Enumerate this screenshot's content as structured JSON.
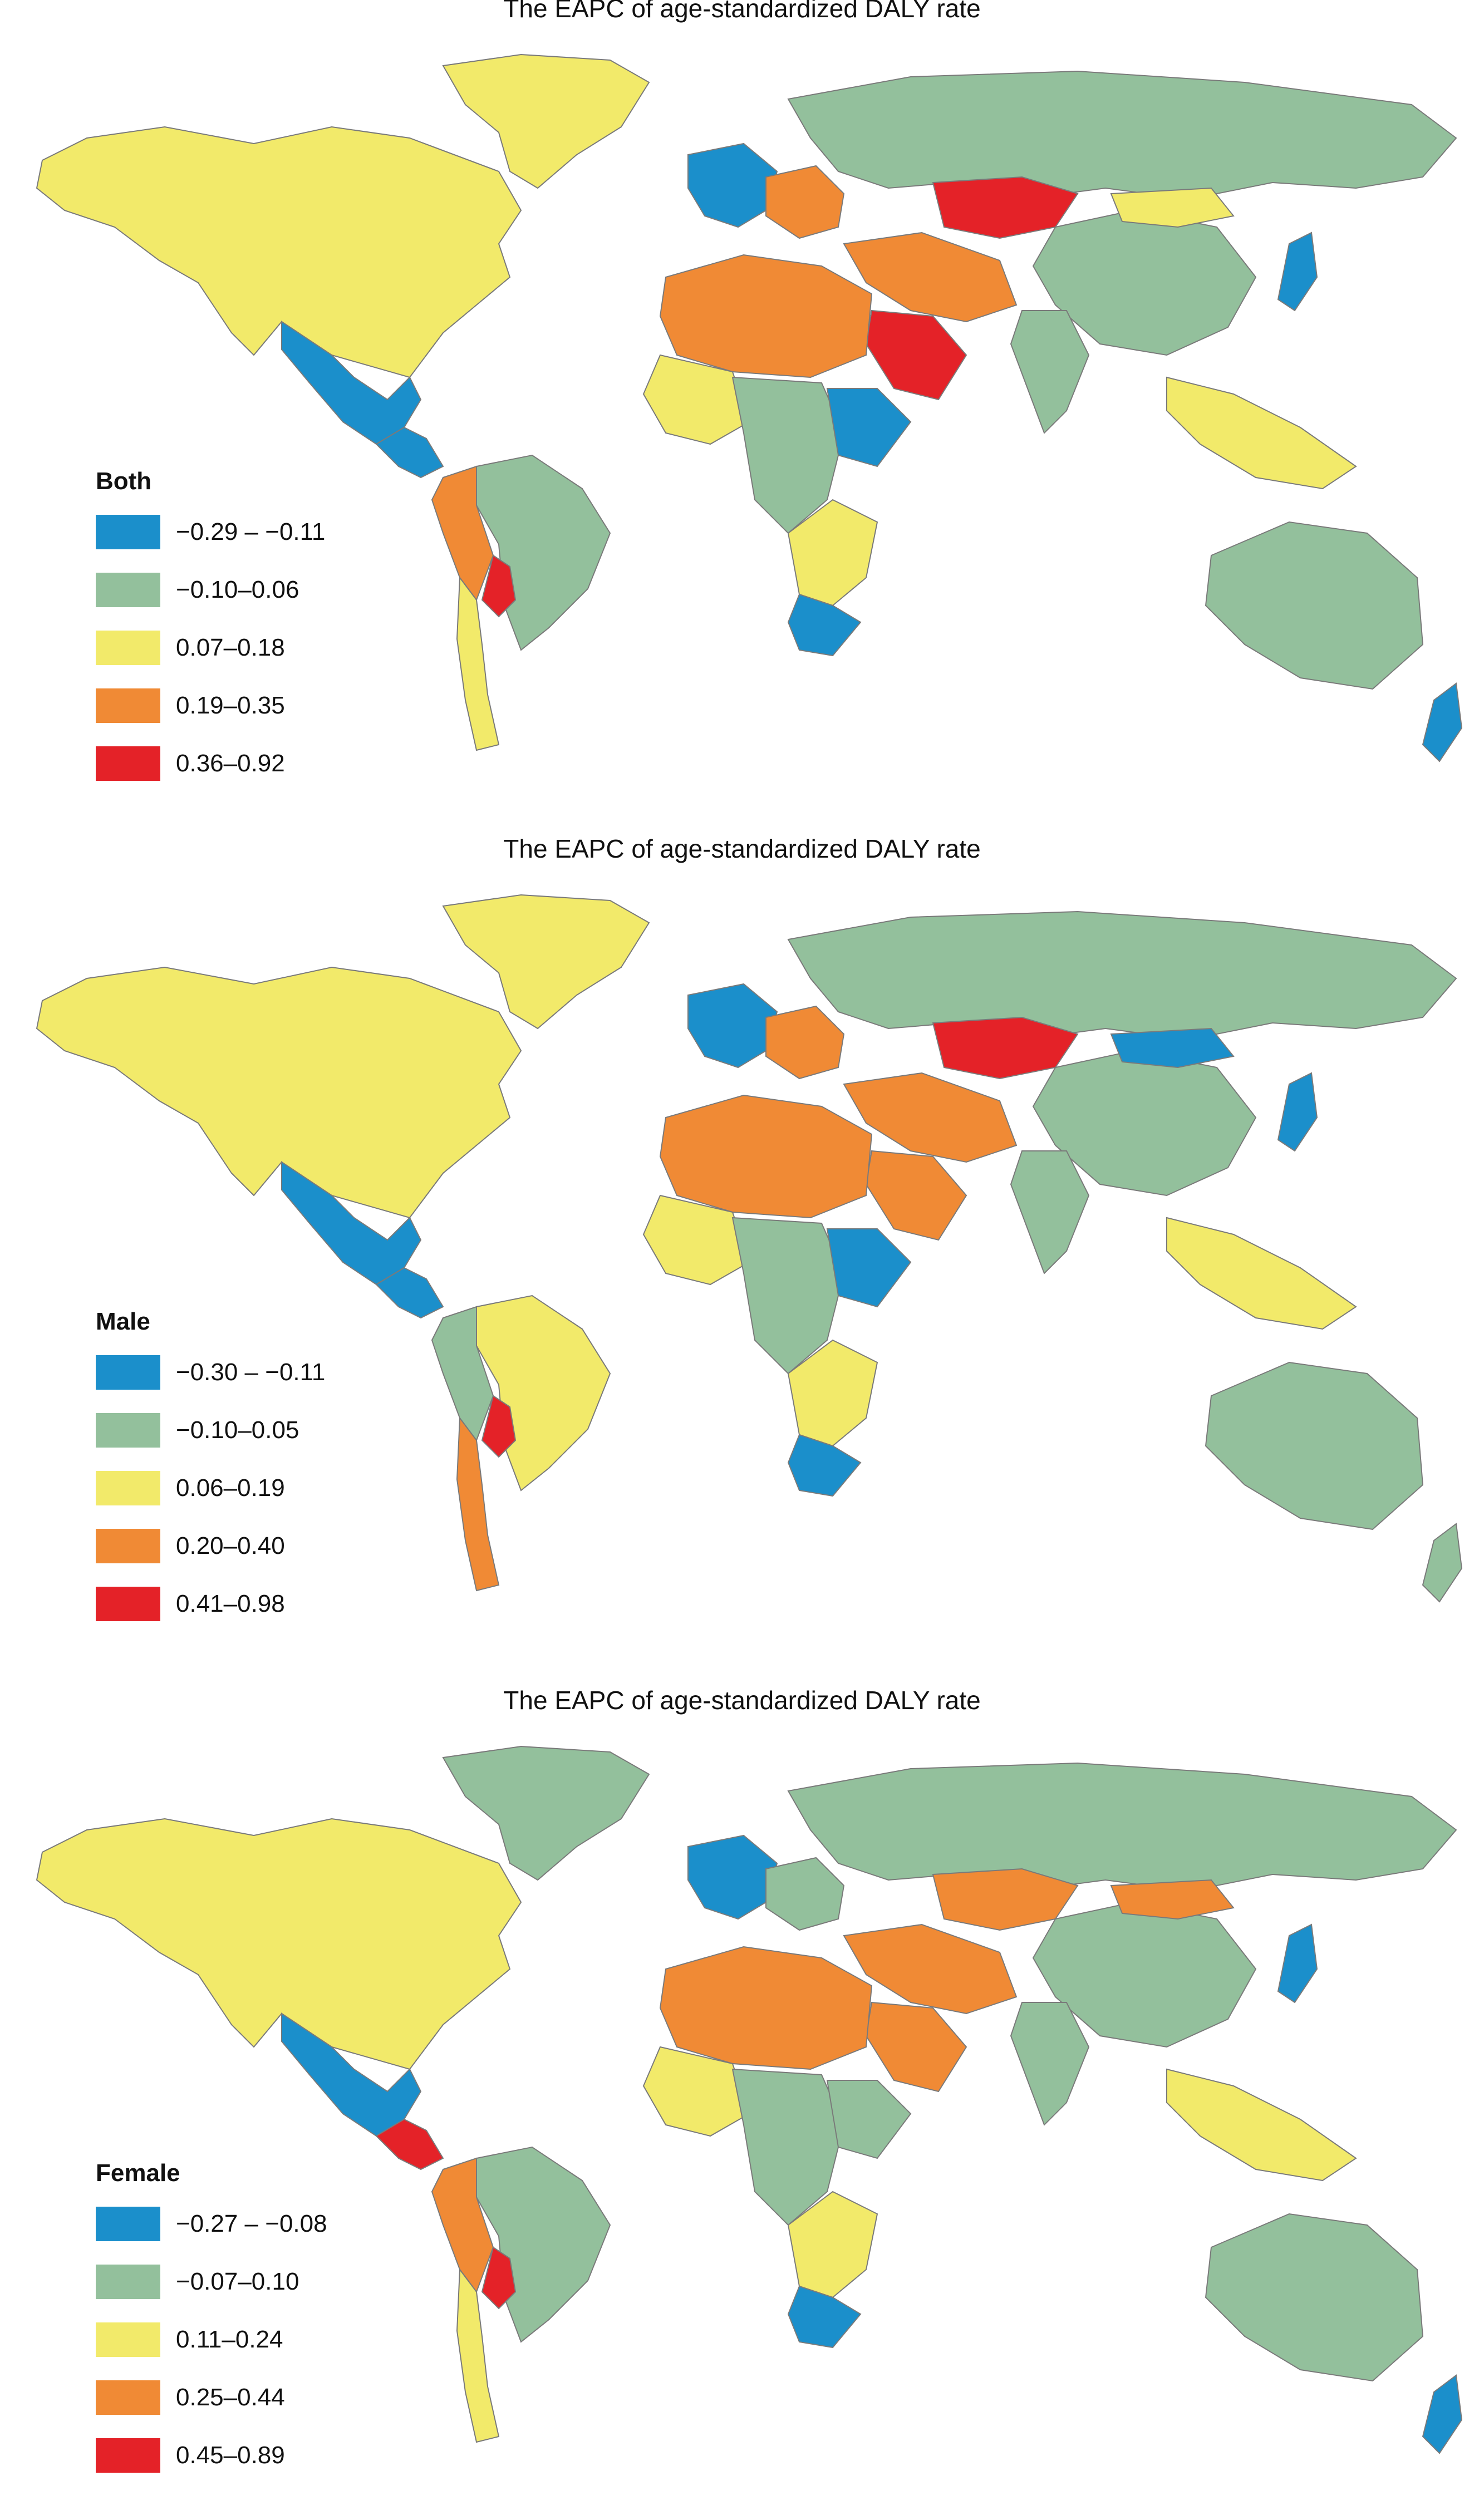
{
  "colors": {
    "blue": "#1b8fcb",
    "green": "#93c09c",
    "yellow": "#f2ea6a",
    "orange": "#f08a35",
    "red": "#e42228",
    "border": "#7a7a7a"
  },
  "panels": [
    {
      "title": "The EAPC of age-standardized DALY rate",
      "legend_title": "Both",
      "legend": [
        {
          "label": "−0.29 – −0.11",
          "color": "#1b8fcb"
        },
        {
          "label": "−0.10–0.06",
          "color": "#93c09c"
        },
        {
          "label": "0.07–0.18",
          "color": "#f2ea6a"
        },
        {
          "label": "0.19–0.35",
          "color": "#f08a35"
        },
        {
          "label": "0.36–0.92",
          "color": "#e42228"
        }
      ],
      "regions": {
        "north_america": "yellow",
        "greenland": "yellow",
        "mexico": "blue",
        "central_america": "blue",
        "south_america_east": "green",
        "south_america_west": "orange",
        "chile": "yellow",
        "bolivia_paraguay": "red",
        "europe_west": "blue",
        "europe_east": "orange",
        "russia": "green",
        "kazakhstan": "red",
        "china": "green",
        "mongolia": "yellow",
        "india": "green",
        "middle_east": "orange",
        "saudi_arabia": "red",
        "north_africa": "orange",
        "west_africa": "yellow",
        "central_africa": "green",
        "east_africa": "blue",
        "southern_africa": "yellow",
        "south_africa": "blue",
        "southeast_asia": "yellow",
        "japan": "blue",
        "australia": "green",
        "new_zealand": "blue"
      }
    },
    {
      "title": "The EAPC of age-standardized DALY rate",
      "legend_title": "Male",
      "legend": [
        {
          "label": "−0.30 – −0.11",
          "color": "#1b8fcb"
        },
        {
          "label": "−0.10–0.05",
          "color": "#93c09c"
        },
        {
          "label": "0.06–0.19",
          "color": "#f2ea6a"
        },
        {
          "label": "0.20–0.40",
          "color": "#f08a35"
        },
        {
          "label": "0.41–0.98",
          "color": "#e42228"
        }
      ],
      "regions": {
        "north_america": "yellow",
        "greenland": "yellow",
        "mexico": "blue",
        "central_america": "blue",
        "south_america_east": "yellow",
        "south_america_west": "green",
        "chile": "orange",
        "bolivia_paraguay": "red",
        "europe_west": "blue",
        "europe_east": "orange",
        "russia": "green",
        "kazakhstan": "red",
        "china": "green",
        "mongolia": "blue",
        "india": "green",
        "middle_east": "orange",
        "saudi_arabia": "orange",
        "north_africa": "orange",
        "west_africa": "yellow",
        "central_africa": "green",
        "east_africa": "blue",
        "southern_africa": "yellow",
        "south_africa": "blue",
        "southeast_asia": "yellow",
        "japan": "blue",
        "australia": "green",
        "new_zealand": "green"
      }
    },
    {
      "title": "The EAPC of age-standardized DALY rate",
      "legend_title": "Female",
      "legend": [
        {
          "label": "−0.27 –  −0.08",
          "color": "#1b8fcb"
        },
        {
          "label": "−0.07–0.10",
          "color": "#93c09c"
        },
        {
          "label": "0.11–0.24",
          "color": "#f2ea6a"
        },
        {
          "label": "0.25–0.44",
          "color": "#f08a35"
        },
        {
          "label": "0.45–0.89",
          "color": "#e42228"
        }
      ],
      "regions": {
        "north_america": "yellow",
        "greenland": "green",
        "mexico": "blue",
        "central_america": "red",
        "south_america_east": "green",
        "south_america_west": "orange",
        "chile": "yellow",
        "bolivia_paraguay": "red",
        "europe_west": "blue",
        "europe_east": "green",
        "russia": "green",
        "kazakhstan": "orange",
        "china": "green",
        "mongolia": "orange",
        "india": "green",
        "middle_east": "orange",
        "saudi_arabia": "orange",
        "north_africa": "orange",
        "west_africa": "yellow",
        "central_africa": "green",
        "east_africa": "green",
        "southern_africa": "yellow",
        "south_africa": "blue",
        "southeast_asia": "yellow",
        "japan": "blue",
        "australia": "green",
        "new_zealand": "blue"
      }
    }
  ]
}
